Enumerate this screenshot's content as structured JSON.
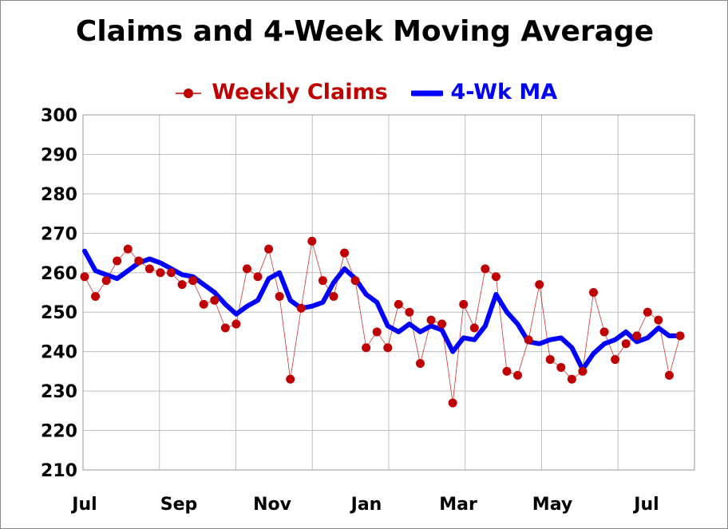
{
  "chart_data": {
    "type": "line",
    "title": "Claims and 4-Week Moving Average",
    "xlabel": "",
    "ylabel": "",
    "ylim": [
      210,
      300
    ],
    "yticks": [
      210,
      220,
      230,
      240,
      250,
      260,
      270,
      280,
      290,
      300
    ],
    "xticks": [
      "Jul",
      "Sep",
      "Nov",
      "Jan",
      "Mar",
      "May",
      "Jul"
    ],
    "grid": true,
    "legend": "top-center",
    "colors": {
      "claims": "#c00000",
      "ma": "#0000ff",
      "grid": "#bfbfbf"
    },
    "series": [
      {
        "name": "Weekly Claims",
        "style": "markers-thin-line",
        "values": [
          259,
          254,
          258,
          263,
          266,
          263,
          261,
          260,
          260,
          257,
          258,
          252,
          253,
          246,
          247,
          261,
          259,
          266,
          254,
          233,
          251,
          268,
          258,
          254,
          265,
          258,
          241,
          245,
          241,
          252,
          250,
          237,
          248,
          247,
          227,
          252,
          246,
          261,
          259,
          235,
          234,
          243,
          257,
          238,
          236,
          233,
          235,
          255,
          245,
          238,
          242,
          244,
          250,
          248,
          234,
          244
        ]
      },
      {
        "name": "4-Wk MA",
        "style": "thick-line",
        "values": [
          265.5,
          260.5,
          259.5,
          258.5,
          260.5,
          262.5,
          263.5,
          262.5,
          261,
          259.5,
          259,
          257,
          255,
          252,
          249.5,
          251.5,
          253,
          258.5,
          260,
          253,
          251,
          251.5,
          252.5,
          257.5,
          261,
          258.5,
          254.5,
          252.5,
          246.5,
          245,
          247,
          245,
          246.5,
          245.5,
          240,
          243.5,
          243,
          246.5,
          254.5,
          250,
          247,
          242.5,
          242,
          243,
          243.5,
          241,
          235.5,
          239.5,
          242,
          243,
          245,
          242.5,
          243.5,
          246,
          244,
          244
        ]
      }
    ]
  }
}
